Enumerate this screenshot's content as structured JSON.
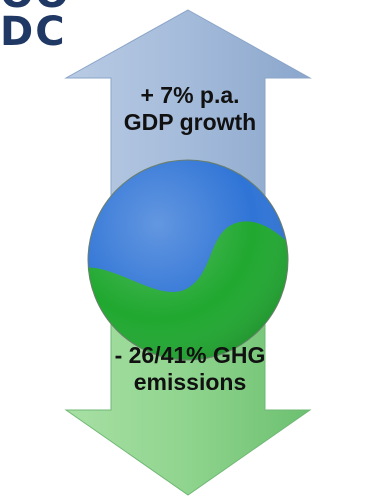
{
  "heading": {
    "line1": "OO",
    "line2": "DC"
  },
  "up_arrow": {
    "line1": "+ 7% p.a.",
    "line2": "GDP growth",
    "color": "#9fb6d5"
  },
  "down_arrow": {
    "line1": "- 26/41% GHG",
    "line2": "emissions",
    "color": "#8fd48e"
  },
  "balance_symbol": {
    "colors": {
      "blue": "#2f74d6",
      "green": "#20a830"
    }
  }
}
